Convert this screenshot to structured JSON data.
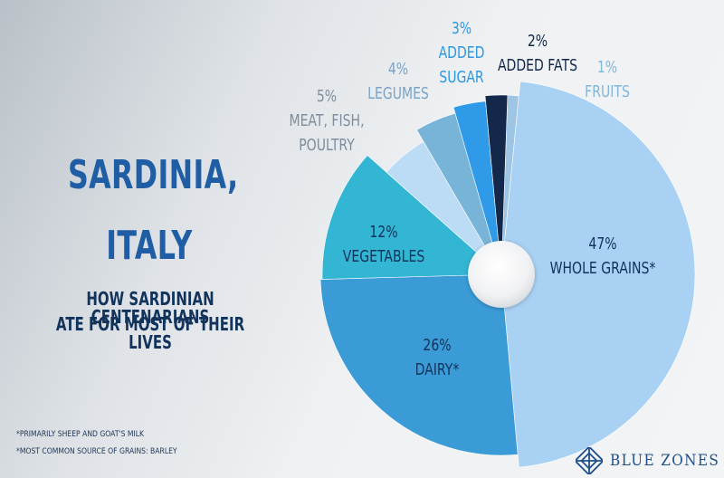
{
  "header": {
    "title_line_1": "SARDINIA,",
    "title_line_2": "ITALY",
    "subtitle_line_1": "HOW SARDINIAN CENTENARIANS",
    "subtitle_line_2": "ATE FOR MOST OF THEIR LIVES"
  },
  "footnotes": [
    "*PRIMARILY SHEEP AND GOAT'S MILK",
    "*MOST COMMON SOURCE OF GRAINS: BARLEY"
  ],
  "logo": {
    "text": "BLUE ZONES",
    "icon": "blue-zones-logo-icon"
  },
  "chart_data": {
    "type": "pie",
    "style": "donut-with-small-white-center",
    "slices": [
      {
        "pct_label": "1%",
        "name_lines": [
          "FRUITS"
        ],
        "value": 1,
        "color": "#9ec6e4"
      },
      {
        "pct_label": "47%",
        "name_lines": [
          "WHOLE GRAINS*"
        ],
        "value": 47,
        "color": "#a9d1f3"
      },
      {
        "pct_label": "26%",
        "name_lines": [
          "DAIRY*"
        ],
        "value": 26,
        "color": "#3a9bd6"
      },
      {
        "pct_label": "12%",
        "name_lines": [
          "VEGETABLES"
        ],
        "value": 12,
        "color": "#33b5d4"
      },
      {
        "pct_label": "5%",
        "name_lines": [
          "MEAT, FISH,",
          "POULTRY"
        ],
        "value": 5,
        "color": "#bcdcf5"
      },
      {
        "pct_label": "4%",
        "name_lines": [
          "LEGUMES"
        ],
        "value": 4,
        "color": "#78b4d8"
      },
      {
        "pct_label": "3%",
        "name_lines": [
          "ADDED",
          "SUGAR"
        ],
        "value": 3,
        "color": "#2f9be8"
      },
      {
        "pct_label": "2%",
        "name_lines": [
          "ADDED FATS"
        ],
        "value": 2,
        "color": "#13284a"
      }
    ],
    "label_colors": {
      "inside": "#12335b",
      "fruits": "#82b5d8",
      "meat": "#7f8e9c",
      "legumes": "#7aa3c6",
      "sugar": "#2c98e0",
      "fats": "#12284a"
    },
    "legend": "none"
  }
}
